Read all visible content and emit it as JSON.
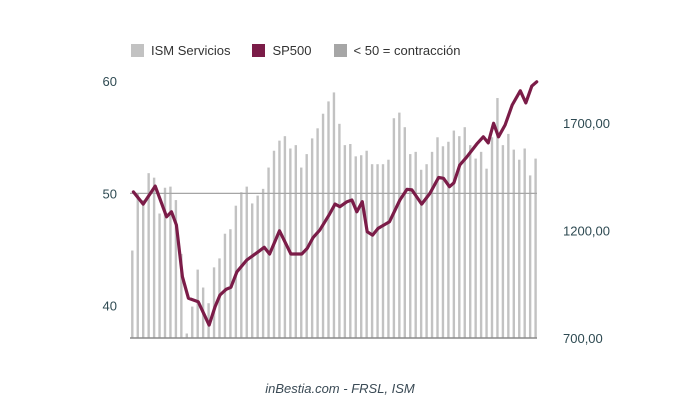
{
  "chart_data": {
    "type": "bar+line",
    "title": "",
    "legend": {
      "placement": "top-left",
      "entries": [
        {
          "label": "ISM Servicios",
          "color": "#c2c2c2"
        },
        {
          "label": "SP500",
          "color": "#7b1c48"
        },
        {
          "label": "< 50 = contracción",
          "color": "#a6a6a6"
        }
      ]
    },
    "left_axis": {
      "ticks": [
        40,
        50,
        60
      ],
      "tick_labels": [
        "40",
        "50",
        "60"
      ],
      "range": [
        37.1,
        61.0
      ]
    },
    "right_axis": {
      "ticks": [
        700,
        1200,
        1700
      ],
      "tick_labels": [
        "700,00",
        "1200,00",
        "1700,00"
      ],
      "range": [
        700,
        1947
      ]
    },
    "reference_line": {
      "axis": "left",
      "value": 50
    },
    "series": [
      {
        "name": "ISM Servicios",
        "type": "bar",
        "axis": "left",
        "values": [
          44.9,
          50.0,
          49.4,
          51.8,
          51.4,
          48.2,
          50.5,
          50.6,
          49.4,
          44.6,
          37.5,
          39.9,
          43.2,
          41.6,
          40.2,
          43.4,
          44.2,
          46.4,
          46.8,
          48.9,
          50.1,
          50.6,
          49.1,
          49.8,
          50.4,
          52.3,
          53.8,
          54.7,
          55.1,
          54.0,
          54.3,
          52.3,
          53.5,
          54.9,
          55.8,
          57.1,
          58.2,
          59.0,
          56.2,
          54.3,
          54.4,
          53.3,
          53.4,
          53.8,
          52.6,
          52.6,
          52.6,
          53.0,
          56.7,
          57.2,
          55.9,
          53.5,
          53.7,
          52.1,
          52.6,
          53.7,
          55.0,
          54.2,
          54.6,
          55.6,
          55.1,
          55.9,
          54.3,
          53.1,
          53.7,
          52.2,
          55.0,
          58.5,
          54.3,
          55.3,
          53.9,
          53.0,
          54.0,
          51.6,
          53.1
        ]
      },
      {
        "name": "SP500",
        "type": "line",
        "axis": "right",
        "points": [
          [
            0.2,
            1380
          ],
          [
            2.0,
            1323
          ],
          [
            4.2,
            1407
          ],
          [
            6.3,
            1264
          ],
          [
            7.2,
            1287
          ],
          [
            8.1,
            1226
          ],
          [
            9.2,
            985
          ],
          [
            10.3,
            885
          ],
          [
            12.1,
            869
          ],
          [
            14.1,
            760
          ],
          [
            15.2,
            846
          ],
          [
            16.1,
            900
          ],
          [
            17.2,
            926
          ],
          [
            18.1,
            936
          ],
          [
            19.2,
            1008
          ],
          [
            21.0,
            1063
          ],
          [
            23.1,
            1101
          ],
          [
            24.2,
            1122
          ],
          [
            25.2,
            1091
          ],
          [
            27.0,
            1199
          ],
          [
            29.1,
            1091
          ],
          [
            31.1,
            1091
          ],
          [
            32.1,
            1117
          ],
          [
            33.2,
            1168
          ],
          [
            34.4,
            1202
          ],
          [
            36.1,
            1272
          ],
          [
            37.2,
            1323
          ],
          [
            38.1,
            1311
          ],
          [
            39.4,
            1334
          ],
          [
            40.3,
            1342
          ],
          [
            41.2,
            1287
          ],
          [
            42.2,
            1334
          ],
          [
            43.1,
            1194
          ],
          [
            44.1,
            1179
          ],
          [
            45.1,
            1210
          ],
          [
            47.2,
            1241
          ],
          [
            49.1,
            1342
          ],
          [
            50.4,
            1392
          ],
          [
            51.3,
            1389
          ],
          [
            53.1,
            1323
          ],
          [
            54.6,
            1373
          ],
          [
            56.2,
            1447
          ],
          [
            57.1,
            1443
          ],
          [
            58.2,
            1404
          ],
          [
            59.0,
            1422
          ],
          [
            60.1,
            1505
          ],
          [
            61.4,
            1543
          ],
          [
            63.2,
            1602
          ],
          [
            64.4,
            1636
          ],
          [
            65.3,
            1608
          ],
          [
            66.3,
            1699
          ],
          [
            67.2,
            1636
          ],
          [
            68.4,
            1691
          ],
          [
            69.7,
            1784
          ],
          [
            71.2,
            1850
          ],
          [
            72.2,
            1794
          ],
          [
            73.3,
            1872
          ],
          [
            74.2,
            1892
          ]
        ]
      }
    ],
    "xlabel": "",
    "grid": false
  },
  "footer": "inBestia.com - FRSL, ISM"
}
